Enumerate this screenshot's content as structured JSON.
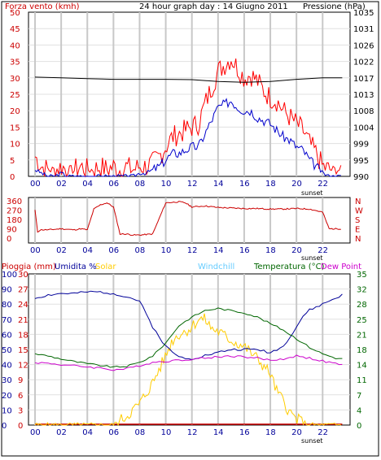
{
  "chart_data": [
    {
      "type": "line",
      "title": "24 hour graph day : 14 Giugno 2011",
      "y_left_label": "Forza vento (kmh)",
      "y_right_label": "Pressione (hPa)",
      "x_ticks": [
        "00",
        "02",
        "04",
        "06",
        "08",
        "10",
        "12",
        "14",
        "16",
        "18",
        "20",
        "22"
      ],
      "x_annotation": "sunset",
      "y_left_ticks": [
        0,
        5,
        10,
        15,
        20,
        25,
        30,
        35,
        40,
        45,
        50
      ],
      "y_right_ticks": [
        990,
        995,
        999,
        1004,
        1008,
        1013,
        1017,
        1022,
        1026,
        1031,
        1035
      ],
      "ylim_left": [
        0,
        50
      ],
      "ylim_right": [
        990,
        1035
      ],
      "colors": {
        "gust": "#ff0000",
        "speed": "#0000cc",
        "pressure": "#000000",
        "grid": "#c0c0c0",
        "axis_left": "#cc0000",
        "axis_right": "#000000"
      },
      "series": [
        {
          "name": "Forza vento (kmh)",
          "key": "gust",
          "x": [
            0,
            0.5,
            1,
            1.5,
            2,
            2.5,
            3,
            3.5,
            4,
            4.5,
            5,
            5.5,
            6,
            6.5,
            7,
            7.5,
            8,
            8.5,
            9,
            9.5,
            10,
            10.5,
            11,
            11.5,
            12,
            12.5,
            13,
            13.5,
            14,
            14.5,
            15,
            15.5,
            16,
            16.5,
            17,
            17.5,
            18,
            18.5,
            19,
            19.5,
            20,
            20.5,
            21,
            21.5,
            22,
            22.5,
            23,
            23.5
          ],
          "y": [
            6,
            3,
            2,
            2,
            3,
            2,
            2,
            3,
            2,
            2,
            3,
            2,
            3,
            2,
            3,
            2,
            3,
            3,
            4,
            6,
            9,
            12,
            13,
            14,
            15,
            16,
            22,
            27,
            32,
            34,
            36,
            33,
            30,
            31,
            29,
            26,
            24,
            23,
            20,
            18,
            16,
            14,
            10,
            7,
            3,
            2,
            2,
            2
          ]
        },
        {
          "name": "",
          "key": "speed",
          "x": [
            0,
            0.5,
            1,
            1.5,
            2,
            2.5,
            3,
            3.5,
            4,
            4.5,
            5,
            5.5,
            6,
            6.5,
            7,
            7.5,
            8,
            8.5,
            9,
            9.5,
            10,
            10.5,
            11,
            11.5,
            12,
            12.5,
            13,
            13.5,
            14,
            14.5,
            15,
            15.5,
            16,
            16.5,
            17,
            17.5,
            18,
            18.5,
            19,
            19.5,
            20,
            20.5,
            21,
            21.5,
            22,
            22.5,
            23,
            23.5
          ],
          "y": [
            2,
            1,
            0,
            0,
            1,
            0,
            0,
            0,
            0,
            0,
            0,
            0,
            0,
            0,
            0,
            0,
            1,
            1,
            2,
            3,
            5,
            7,
            7,
            8,
            9,
            9,
            13,
            17,
            21,
            22,
            23,
            21,
            20,
            20,
            18,
            17,
            16,
            14,
            12,
            11,
            9,
            8,
            5,
            3,
            1,
            0,
            0,
            0
          ]
        },
        {
          "name": "Pressione (hPa)",
          "key": "pressure",
          "axis": "right",
          "x": [
            0,
            2,
            4,
            6,
            8,
            10,
            12,
            14,
            16,
            18,
            20,
            22,
            23.5
          ],
          "y": [
            1017.2,
            1017.0,
            1016.8,
            1016.6,
            1016.6,
            1016.6,
            1016.5,
            1016.0,
            1015.8,
            1016.0,
            1016.6,
            1017.0,
            1017.0
          ]
        }
      ]
    },
    {
      "type": "line",
      "y_right_label": "N W S E N",
      "x_ticks": [
        "00",
        "02",
        "04",
        "06",
        "08",
        "10",
        "12",
        "14",
        "16",
        "18",
        "20",
        "22"
      ],
      "x_annotation": "sunset",
      "y_left_ticks": [
        0,
        90,
        180,
        270,
        360
      ],
      "y_right_ticks": [
        "N",
        "W",
        "S",
        "E",
        "N"
      ],
      "ylim": [
        0,
        360
      ],
      "colors": {
        "line": "#cc0000",
        "grid": "#c0c0c0",
        "axis": "#cc0000"
      },
      "series": [
        {
          "name": "",
          "x": [
            0,
            0.2,
            0.4,
            1,
            2,
            3,
            3.5,
            4,
            4.5,
            5,
            5.5,
            6,
            6.5,
            7,
            7.5,
            8,
            9,
            10,
            11,
            11.5,
            12,
            13,
            14,
            15,
            16,
            17,
            18,
            19,
            20,
            21,
            22,
            22.5,
            23,
            23.5
          ],
          "y": [
            270,
            60,
            80,
            80,
            90,
            80,
            90,
            80,
            280,
            320,
            340,
            300,
            40,
            40,
            30,
            30,
            40,
            340,
            350,
            340,
            300,
            310,
            295,
            290,
            285,
            285,
            280,
            280,
            285,
            280,
            250,
            90,
            90,
            90
          ]
        }
      ]
    },
    {
      "type": "line",
      "labels": [
        "Pioggia (mm)",
        "Umidita %",
        "Solar",
        "Windchill",
        "Temperatura (°C)",
        "Dew Point"
      ],
      "x_ticks": [
        "00",
        "02",
        "04",
        "06",
        "08",
        "10",
        "12",
        "14",
        "16",
        "18",
        "20",
        "22"
      ],
      "x_annotation": "sunset",
      "y_left_ticks_rain": [
        0,
        10,
        20,
        30,
        40,
        50,
        60,
        70,
        80,
        90,
        100
      ],
      "y_left_ticks_hum": [
        0,
        3,
        6,
        9,
        12,
        15,
        18,
        21,
        24,
        27,
        30
      ],
      "y_right_ticks": [
        0,
        4,
        7,
        11,
        14,
        18,
        21,
        25,
        28,
        32,
        35
      ],
      "ylim_left": [
        0,
        100
      ],
      "ylim_right": [
        0,
        35
      ],
      "colors": {
        "rain": "#cc0000",
        "humidity": "#000099",
        "solar": "#ffcc00",
        "windchill": "#66ccff",
        "temperature": "#006600",
        "dewpoint": "#cc00cc",
        "axis_right": "#006600",
        "grid": "#c0c0c0"
      },
      "series": [
        {
          "name": "Pioggia (mm)",
          "key": "rain",
          "x": [
            0,
            23.5
          ],
          "y": [
            0,
            0
          ]
        },
        {
          "name": "Umidita %",
          "key": "humidity",
          "x": [
            0,
            1,
            2,
            3,
            4,
            5,
            6,
            7,
            8,
            9,
            10,
            11,
            12,
            13,
            14,
            15,
            16,
            17,
            18,
            19,
            20,
            20.5,
            21,
            22,
            23,
            23.5
          ],
          "y": [
            84,
            86,
            87,
            87,
            88,
            88,
            87,
            85,
            82,
            65,
            52,
            45,
            44,
            46,
            48,
            50,
            50,
            50,
            48,
            52,
            65,
            72,
            76,
            80,
            84,
            86
          ]
        },
        {
          "name": "Solar",
          "key": "solar",
          "x": [
            0,
            5,
            6,
            6.5,
            7,
            8,
            9,
            10,
            10.5,
            11,
            11.5,
            12,
            12.5,
            13,
            13.5,
            14,
            15,
            16,
            17,
            18,
            18.5,
            19,
            19.5,
            20,
            21,
            23.5
          ],
          "y": [
            0,
            0,
            0,
            3,
            6,
            14,
            28,
            46,
            56,
            60,
            62,
            65,
            70,
            70,
            64,
            62,
            56,
            52,
            44,
            34,
            22,
            16,
            8,
            4,
            0,
            0
          ]
        },
        {
          "name": "Temperatura (°C)",
          "key": "temperature",
          "x": [
            0,
            1,
            2,
            3,
            4,
            5,
            6,
            7,
            8,
            9,
            10,
            11,
            12,
            13,
            14,
            15,
            16,
            17,
            18,
            19,
            20,
            21,
            22,
            23,
            23.5
          ],
          "y": [
            16.5,
            16,
            15.3,
            14.7,
            14.2,
            13.8,
            13.4,
            13.6,
            14.5,
            16,
            19,
            23,
            25,
            26.5,
            27,
            26.5,
            26,
            25,
            23.5,
            22,
            20,
            18,
            16.5,
            15.5,
            15.3
          ]
        },
        {
          "name": "Dew Point",
          "key": "dewpoint",
          "x": [
            0,
            1,
            2,
            3,
            4,
            5,
            6,
            7,
            8,
            9,
            10,
            11,
            12,
            13,
            14,
            15,
            16,
            17,
            18,
            19,
            20,
            21,
            22,
            23,
            23.5
          ],
          "y": [
            14.5,
            14.3,
            14,
            13.7,
            13.5,
            13.2,
            12.8,
            13,
            13.8,
            14.5,
            14.8,
            15,
            15.3,
            15.5,
            15.8,
            16,
            15.8,
            15.5,
            15,
            15.3,
            16,
            15.5,
            14.8,
            14.2,
            14
          ]
        }
      ]
    }
  ]
}
